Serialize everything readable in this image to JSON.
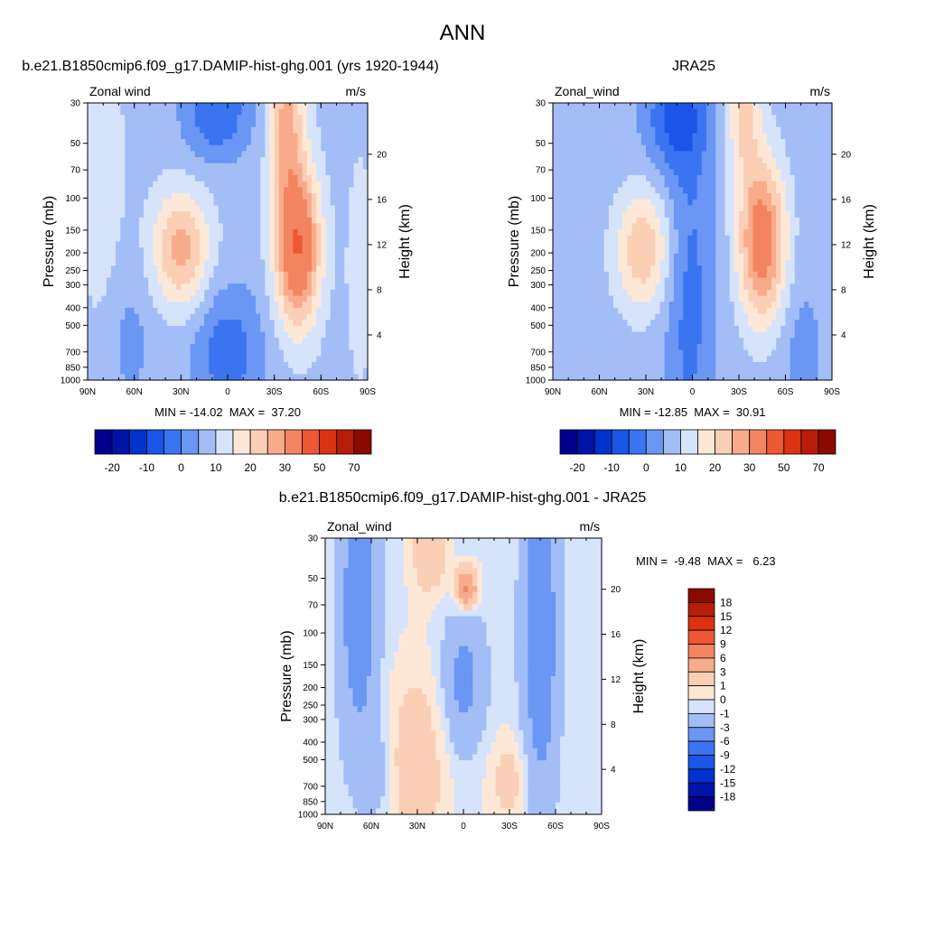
{
  "title": "ANN",
  "chart_data": [
    {
      "type": "heatmap",
      "panel": "model",
      "title": "b.e21.B1850cmip6.f09_g17.DAMIP-hist-ghg.001 (yrs 1920-1944)",
      "left_label": "Zonal wind",
      "right_label": "m/s",
      "ylabel": "Pressure (mb)",
      "ylabel_right": "Height (km)",
      "xticks": [
        "90N",
        "60N",
        "30N",
        "0",
        "30S",
        "60S",
        "90S"
      ],
      "yticks": [
        "30",
        "50",
        "70",
        "100",
        "150",
        "200",
        "250",
        "300",
        "400",
        "500",
        "700",
        "850",
        "1000"
      ],
      "yticks_right": [
        "20",
        "16",
        "12",
        "8",
        "4"
      ],
      "stats": "MIN = -14.02  MAX =  37.20",
      "min": -14.02,
      "max": 37.2,
      "colorbar": {
        "orientation": "horizontal",
        "tick_labels": [
          "-20",
          "-10",
          "0",
          "10",
          "20",
          "30",
          "50",
          "70"
        ],
        "colors": [
          "#00008b",
          "#0014a8",
          "#0033cc",
          "#1a55e8",
          "#3a74f0",
          "#6a96f4",
          "#a3bdf7",
          "#d6e4fb",
          "#fde8d8",
          "#fbcfb6",
          "#f8ab8b",
          "#f38460",
          "#ee5734",
          "#dc3212",
          "#b81d08",
          "#8a0a00"
        ]
      },
      "levels": [
        -20,
        -15,
        -10,
        -5,
        0,
        5,
        10,
        15,
        20,
        25,
        30,
        40,
        50,
        60,
        70
      ]
    },
    {
      "type": "heatmap",
      "panel": "reference",
      "title": "JRA25",
      "left_label": "Zonal_wind",
      "right_label": "m/s",
      "ylabel": "Pressure (mb)",
      "ylabel_right": "Height (km)",
      "xticks": [
        "90N",
        "60N",
        "30N",
        "0",
        "30S",
        "60S",
        "90S"
      ],
      "yticks": [
        "30",
        "50",
        "70",
        "100",
        "150",
        "200",
        "250",
        "300",
        "400",
        "500",
        "700",
        "850",
        "1000"
      ],
      "yticks_right": [
        "20",
        "16",
        "12",
        "8",
        "4"
      ],
      "stats": "MIN = -12.85  MAX =  30.91",
      "min": -12.85,
      "max": 30.91,
      "colorbar": {
        "orientation": "horizontal",
        "tick_labels": [
          "-20",
          "-10",
          "0",
          "10",
          "20",
          "30",
          "50",
          "70"
        ],
        "colors": [
          "#00008b",
          "#0014a8",
          "#0033cc",
          "#1a55e8",
          "#3a74f0",
          "#6a96f4",
          "#a3bdf7",
          "#d6e4fb",
          "#fde8d8",
          "#fbcfb6",
          "#f8ab8b",
          "#f38460",
          "#ee5734",
          "#dc3212",
          "#b81d08",
          "#8a0a00"
        ]
      },
      "levels": [
        -20,
        -15,
        -10,
        -5,
        0,
        5,
        10,
        15,
        20,
        25,
        30,
        40,
        50,
        60,
        70
      ]
    },
    {
      "type": "heatmap",
      "panel": "difference",
      "title": "b.e21.B1850cmip6.f09_g17.DAMIP-hist-ghg.001 - JRA25",
      "left_label": "Zonal_wind",
      "right_label": "m/s",
      "ylabel": "Pressure (mb)",
      "ylabel_right": "Height (km)",
      "xticks": [
        "90N",
        "60N",
        "30N",
        "0",
        "30S",
        "60S",
        "90S"
      ],
      "yticks": [
        "30",
        "50",
        "70",
        "100",
        "150",
        "200",
        "250",
        "300",
        "400",
        "500",
        "700",
        "850",
        "1000"
      ],
      "yticks_right": [
        "20",
        "16",
        "12",
        "8",
        "4"
      ],
      "stats": "MIN =  -9.48  MAX =   6.23",
      "min": -9.48,
      "max": 6.23,
      "colorbar": {
        "orientation": "vertical",
        "tick_labels": [
          "18",
          "15",
          "12",
          "9",
          "6",
          "3",
          "1",
          "0",
          "-1",
          "-3",
          "-6",
          "-9",
          "-12",
          "-15",
          "-18"
        ],
        "colors": [
          "#8a0a00",
          "#b81d08",
          "#dc3212",
          "#ee5734",
          "#f38460",
          "#f8ab8b",
          "#fbcfb6",
          "#fde8d8",
          "#d6e4fb",
          "#a3bdf7",
          "#6a96f4",
          "#3a74f0",
          "#1a55e8",
          "#0033cc",
          "#0014a8",
          "#00008b"
        ]
      },
      "levels": [
        -18,
        -15,
        -12,
        -9,
        -6,
        -3,
        -1,
        0,
        1,
        3,
        6,
        9,
        12,
        15,
        18
      ]
    }
  ]
}
